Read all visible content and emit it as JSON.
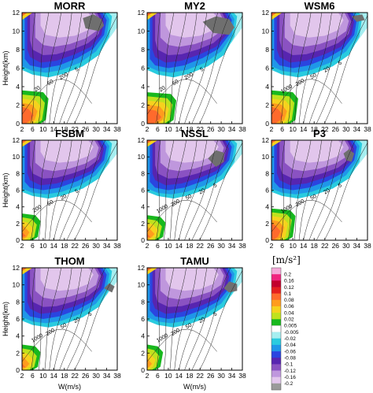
{
  "figure": {
    "x_label": "W(m/s)",
    "y_label": "Height(km)",
    "x_ticks": [
      "2",
      "6",
      "10",
      "14",
      "18",
      "22",
      "26",
      "30",
      "34",
      "38"
    ],
    "y_ticks": [
      "0",
      "2",
      "4",
      "6",
      "8",
      "10",
      "12"
    ]
  },
  "chart_data": [
    {
      "type": "heatmap",
      "title": "MORR",
      "xlabel": "",
      "ylabel": "Height(km)",
      "xlim": [
        2,
        38
      ],
      "ylim": [
        0,
        12
      ],
      "grey_patch": [
        [
          25,
          11.4
        ],
        [
          29,
          11.8
        ],
        [
          32,
          11.3
        ],
        [
          33,
          10.6
        ],
        [
          31,
          10.0
        ],
        [
          26,
          10.3
        ]
      ],
      "low_patch_top": 3.6,
      "low_patch_right": 12,
      "contour_labels": [
        "20",
        "50",
        "200",
        "5"
      ]
    },
    {
      "type": "heatmap",
      "title": "MY2",
      "xlabel": "",
      "ylabel": "",
      "xlim": [
        2,
        38
      ],
      "ylim": [
        0,
        12
      ],
      "grey_patch": [
        [
          23,
          11.0
        ],
        [
          28,
          11.6
        ],
        [
          33,
          11.3
        ],
        [
          35,
          10.4
        ],
        [
          33,
          9.6
        ],
        [
          27,
          9.8
        ]
      ],
      "low_patch_top": 3.4,
      "low_patch_right": 13,
      "contour_labels": [
        "20",
        "50",
        "200",
        "5"
      ]
    },
    {
      "type": "heatmap",
      "title": "WSM6",
      "xlabel": "",
      "ylabel": "",
      "xlim": [
        2,
        38
      ],
      "ylim": [
        0,
        12
      ],
      "grey_patch": [
        [
          32,
          11.6
        ],
        [
          36,
          11.8
        ],
        [
          37,
          11.2
        ],
        [
          34,
          11.0
        ]
      ],
      "low_patch_top": 3.6,
      "low_patch_right": 12,
      "contour_labels": [
        "1000",
        "200",
        "50",
        "20",
        "5"
      ]
    },
    {
      "type": "heatmap",
      "title": "FSBM",
      "xlabel": "",
      "ylabel": "Height(km)",
      "xlim": [
        2,
        38
      ],
      "ylim": [
        0,
        12
      ],
      "grey_patch": [],
      "low_patch_top": 3.2,
      "low_patch_right": 9,
      "contour_labels": [
        "200",
        "50",
        "20",
        "5"
      ]
    },
    {
      "type": "heatmap",
      "title": "NSSL",
      "xlabel": "",
      "ylabel": "",
      "xlim": [
        2,
        38
      ],
      "ylim": [
        0,
        12
      ],
      "grey_patch": [
        [
          25,
          9.8
        ],
        [
          28,
          10.8
        ],
        [
          31,
          10.5
        ],
        [
          31,
          9.4
        ],
        [
          28,
          8.8
        ]
      ],
      "low_patch_top": 3.0,
      "low_patch_right": 9,
      "contour_labels": [
        "1000",
        "200",
        "50",
        "20",
        "5"
      ]
    },
    {
      "type": "heatmap",
      "title": "P3",
      "xlabel": "",
      "ylabel": "",
      "xlim": [
        2,
        38
      ],
      "ylim": [
        0,
        12
      ],
      "grey_patch": [
        [
          29,
          10.4
        ],
        [
          31,
          10.9
        ],
        [
          33,
          10.4
        ],
        [
          32,
          9.4
        ],
        [
          30,
          9.6
        ]
      ],
      "low_patch_top": 3.8,
      "low_patch_right": 11,
      "contour_labels": [
        "1000",
        "200",
        "50",
        "20",
        "5"
      ]
    },
    {
      "type": "heatmap",
      "title": "THOM",
      "xlabel": "W(m/s)",
      "ylabel": "Height(km)",
      "xlim": [
        2,
        38
      ],
      "ylim": [
        0,
        12
      ],
      "grey_patch": [
        [
          33,
          9.6
        ],
        [
          35,
          10.2
        ],
        [
          37,
          9.8
        ],
        [
          36,
          9.1
        ]
      ],
      "low_patch_top": 3.0,
      "low_patch_right": 9,
      "contour_labels": [
        "1000",
        "200",
        "50",
        "20",
        "5"
      ]
    },
    {
      "type": "heatmap",
      "title": "TAMU",
      "xlabel": "W(m/s)",
      "ylabel": "",
      "xlim": [
        2,
        38
      ],
      "ylim": [
        0,
        12
      ],
      "grey_patch": [
        [
          31,
          9.6
        ],
        [
          33,
          10.4
        ],
        [
          36,
          10.1
        ],
        [
          36,
          9.3
        ],
        [
          33,
          9.1
        ]
      ],
      "low_patch_top": 3.0,
      "low_patch_right": 8,
      "contour_labels": [
        "1000",
        "200",
        "50",
        "20",
        "5"
      ]
    }
  ],
  "colorbar": {
    "title": "[m/s²]",
    "levels": [
      "0.2",
      "0.16",
      "0.12",
      "0.1",
      "0.08",
      "0.06",
      "0.04",
      "0.02",
      "0.005",
      "-0.005",
      "-0.02",
      "-0.04",
      "-0.06",
      "-0.08",
      "-0.1",
      "-0.12",
      "-0.16",
      "-0.2"
    ],
    "colors": [
      "#f4a9d8",
      "#f0247e",
      "#c2002c",
      "#e41f1f",
      "#ff6a2c",
      "#ff9c1e",
      "#f6d21e",
      "#bfe21e",
      "#18b81e",
      "#ffffff",
      "#a6eef0",
      "#2acbdf",
      "#1f97e8",
      "#2a45e0",
      "#5725b0",
      "#8a52c2",
      "#bf97dd",
      "#e2c6ec",
      "#9a9a9a"
    ]
  }
}
